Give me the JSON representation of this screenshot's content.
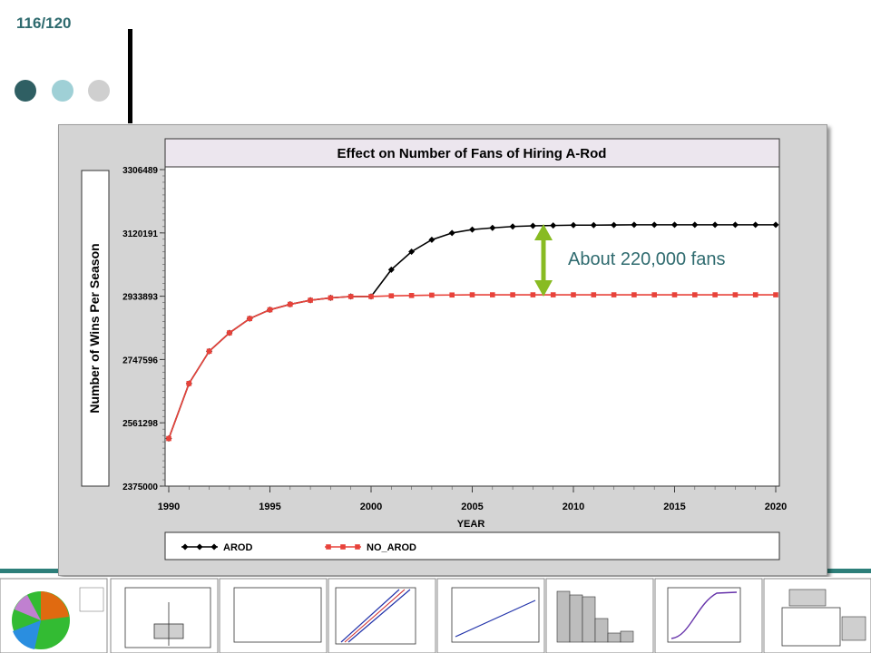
{
  "slide": {
    "number": "116/120"
  },
  "annotation": {
    "text": "About 220,000 fans"
  },
  "colors": {
    "accent_dark": "#2f5f63",
    "accent_light": "#9fd0d6",
    "accent_gray": "#cfcfcf",
    "arrow": "#88bb22",
    "arod": "#000000",
    "no_arod": "#e8423a"
  },
  "chart_data": {
    "type": "line",
    "title": "Effect on Number of Fans of Hiring A-Rod",
    "xlabel": "YEAR",
    "ylabel": "Number of Wins Per Season",
    "xlim": [
      1990,
      2020
    ],
    "ylim": [
      2375000,
      3306489
    ],
    "x_ticks": [
      "1990",
      "1995",
      "2000",
      "2005",
      "2010",
      "2015",
      "2020"
    ],
    "y_ticks": [
      "3306489",
      "3120191",
      "2933893",
      "2747596",
      "2561298",
      "2375000"
    ],
    "x": [
      1990,
      1991,
      1992,
      1993,
      1994,
      1995,
      1996,
      1997,
      1998,
      1999,
      2000,
      2001,
      2002,
      2003,
      2004,
      2005,
      2006,
      2007,
      2008,
      2009,
      2010,
      2011,
      2012,
      2013,
      2014,
      2015,
      2016,
      2017,
      2018,
      2019,
      2020
    ],
    "series": [
      {
        "name": "AROD",
        "color": "#000000",
        "marker": "diamond",
        "values": [
          2515000,
          2677000,
          2772000,
          2826000,
          2868000,
          2894000,
          2910000,
          2922000,
          2929000,
          2933000,
          2933000,
          3012000,
          3065000,
          3100000,
          3120000,
          3130000,
          3135000,
          3139000,
          3141000,
          3142000,
          3143000,
          3143000,
          3143500,
          3144000,
          3144000,
          3144000,
          3144000,
          3144000,
          3144000,
          3144000,
          3144000
        ]
      },
      {
        "name": "NO_AROD",
        "color": "#e8423a",
        "marker": "square",
        "values": [
          2515000,
          2677000,
          2772000,
          2826000,
          2868000,
          2894000,
          2910000,
          2922000,
          2929000,
          2933000,
          2933000,
          2935000,
          2936000,
          2937000,
          2937500,
          2938000,
          2938000,
          2938000,
          2938000,
          2938000,
          2938000,
          2938000,
          2938000,
          2938000,
          2938000,
          2938000,
          2938000,
          2938000,
          2938000,
          2938000,
          2938000
        ]
      }
    ],
    "legend": {
      "position": "bottom",
      "entries": [
        "AROD",
        "NO_AROD"
      ]
    },
    "grid": false
  }
}
